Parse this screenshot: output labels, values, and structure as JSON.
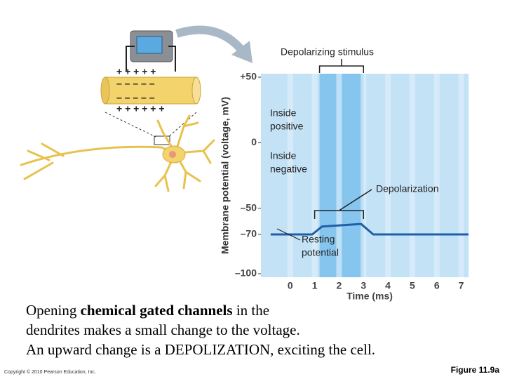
{
  "chart_data": {
    "type": "line",
    "ylabel": "Membrane potential (voltage, mV)",
    "xlabel": "Time (ms)",
    "x": [
      -0.8,
      0.9,
      1.3,
      2.9,
      3.4,
      7.3
    ],
    "series": [
      {
        "color": "#1f5fa8",
        "values": [
          -70,
          -70,
          -64,
          -62,
          -70,
          -70
        ]
      }
    ],
    "xlim": [
      -1.2,
      7.3
    ],
    "xticks": [
      0,
      1,
      2,
      3,
      4,
      5,
      6,
      7
    ],
    "ylim": [
      -100,
      50
    ],
    "yticks": [
      {
        "value": 50,
        "label": "+50"
      },
      0,
      {
        "value": -50,
        "label": "–50"
      },
      {
        "value": -70,
        "label": "–70"
      },
      {
        "value": -100,
        "label": "–100"
      }
    ],
    "grid": true,
    "stimulus": [
      1.2,
      3.0
    ],
    "depolarization_range": [
      1,
      3
    ],
    "annotations": [
      [
        "Depolarizing stimulus"
      ],
      [
        "Inside",
        "positive"
      ],
      [
        "Inside",
        "negative"
      ],
      [
        "Depolarization"
      ],
      [
        "Resting",
        "potential"
      ]
    ]
  },
  "membrane_signs": {
    "outer_top": "+  +  +  +  +",
    "inner_top": "–  –  –  –  –",
    "inner_bottom": "–  –  –  –  –",
    "outer_bottom": "+  +  +  +  +  +"
  },
  "caption": [
    [
      "Opening ",
      "chemical gated channels",
      " in the"
    ],
    [
      "dendrites makes a small change to the voltage."
    ],
    [
      "An upward change is a DEPOLIZATION, exciting the cell."
    ]
  ],
  "copyright": "Copyright © 2010 Pearson Education, Inc.",
  "figure_label": "Figure 11.9a"
}
